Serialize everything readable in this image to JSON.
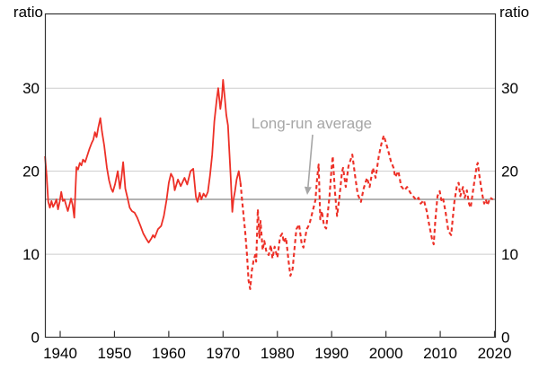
{
  "chart_data": {
    "type": "line",
    "unit_left": "ratio",
    "unit_right": "ratio",
    "x_ticks": [
      1940,
      1950,
      1960,
      1970,
      1980,
      1990,
      2000,
      2010,
      2020
    ],
    "y_ticks": [
      0,
      10,
      20,
      30
    ],
    "x_range": [
      1937.2,
      2020.3
    ],
    "y_range": [
      0,
      39
    ],
    "grid": "horizontal gridlines at 10, 20, 30",
    "legend_position": "none",
    "annotation": {
      "text": "Long-run average",
      "value": 16.6,
      "color": "#a6a6a6"
    },
    "colors": {
      "line": "#ed3027",
      "gridline": "#cdcdcd",
      "average_line": "#9a9a9a",
      "axis": "#333333",
      "text": "#000000"
    },
    "series": [
      {
        "name": "solid-segment",
        "style": "solid",
        "points": [
          [
            1937.2,
            21.8
          ],
          [
            1937.5,
            19.5
          ],
          [
            1937.8,
            16.3
          ],
          [
            1938.1,
            15.6
          ],
          [
            1938.4,
            16.4
          ],
          [
            1938.7,
            15.7
          ],
          [
            1939.0,
            16.1
          ],
          [
            1939.3,
            16.6
          ],
          [
            1939.6,
            15.4
          ],
          [
            1939.9,
            16.3
          ],
          [
            1940.2,
            17.5
          ],
          [
            1940.5,
            16.4
          ],
          [
            1940.8,
            16.6
          ],
          [
            1941.1,
            15.9
          ],
          [
            1941.4,
            15.2
          ],
          [
            1941.8,
            16.2
          ],
          [
            1942.0,
            16.7
          ],
          [
            1942.3,
            15.9
          ],
          [
            1942.6,
            14.4
          ],
          [
            1943.0,
            20.5
          ],
          [
            1943.3,
            20.2
          ],
          [
            1943.6,
            21.0
          ],
          [
            1943.9,
            20.7
          ],
          [
            1944.2,
            21.4
          ],
          [
            1944.6,
            21.1
          ],
          [
            1945.0,
            21.9
          ],
          [
            1945.4,
            22.7
          ],
          [
            1945.8,
            23.4
          ],
          [
            1946.1,
            23.8
          ],
          [
            1946.4,
            24.7
          ],
          [
            1946.7,
            24.1
          ],
          [
            1947.0,
            25.2
          ],
          [
            1947.4,
            26.4
          ],
          [
            1947.7,
            24.8
          ],
          [
            1948.1,
            23.1
          ],
          [
            1948.6,
            20.4
          ],
          [
            1949.0,
            18.9
          ],
          [
            1949.4,
            17.9
          ],
          [
            1949.7,
            17.5
          ],
          [
            1950.1,
            18.4
          ],
          [
            1950.6,
            20.0
          ],
          [
            1951.0,
            17.9
          ],
          [
            1951.3,
            19.3
          ],
          [
            1951.6,
            21.1
          ],
          [
            1952.0,
            17.9
          ],
          [
            1952.4,
            16.8
          ],
          [
            1952.8,
            15.6
          ],
          [
            1953.2,
            15.2
          ],
          [
            1953.7,
            15.0
          ],
          [
            1954.2,
            14.4
          ],
          [
            1954.8,
            13.4
          ],
          [
            1955.3,
            12.5
          ],
          [
            1955.9,
            11.8
          ],
          [
            1956.3,
            11.4
          ],
          [
            1956.8,
            11.9
          ],
          [
            1957.1,
            12.3
          ],
          [
            1957.4,
            12.0
          ],
          [
            1958.0,
            13.0
          ],
          [
            1958.6,
            13.4
          ],
          [
            1959.1,
            14.6
          ],
          [
            1959.6,
            16.6
          ],
          [
            1960.0,
            18.6
          ],
          [
            1960.4,
            19.7
          ],
          [
            1960.8,
            19.2
          ],
          [
            1961.1,
            17.7
          ],
          [
            1961.7,
            19.0
          ],
          [
            1962.2,
            18.2
          ],
          [
            1962.9,
            19.2
          ],
          [
            1963.4,
            18.4
          ],
          [
            1964.0,
            20.0
          ],
          [
            1964.5,
            20.3
          ],
          [
            1965.0,
            16.9
          ],
          [
            1965.3,
            16.3
          ],
          [
            1965.7,
            17.4
          ],
          [
            1966.0,
            16.6
          ],
          [
            1966.4,
            17.3
          ],
          [
            1966.8,
            16.9
          ],
          [
            1967.2,
            17.5
          ],
          [
            1967.6,
            19.5
          ],
          [
            1968.0,
            22.0
          ],
          [
            1968.4,
            26.0
          ],
          [
            1968.8,
            28.5
          ],
          [
            1969.1,
            30.0
          ],
          [
            1969.5,
            27.5
          ],
          [
            1969.8,
            29.0
          ],
          [
            1970.0,
            31.0
          ],
          [
            1970.3,
            29.0
          ],
          [
            1970.6,
            26.8
          ],
          [
            1970.9,
            25.5
          ],
          [
            1971.1,
            23.0
          ],
          [
            1971.4,
            19.3
          ],
          [
            1971.7,
            15.1
          ],
          [
            1971.9,
            16.5
          ],
          [
            1972.2,
            17.6
          ],
          [
            1972.5,
            19.0
          ],
          [
            1972.9,
            20.0
          ],
          [
            1973.2,
            18.6
          ]
        ]
      },
      {
        "name": "dashed-segment",
        "style": "dashed",
        "points": [
          [
            1973.2,
            18.6
          ],
          [
            1973.5,
            16.5
          ],
          [
            1973.8,
            14.5
          ],
          [
            1974.1,
            12.5
          ],
          [
            1974.4,
            10.0
          ],
          [
            1974.7,
            6.8
          ],
          [
            1975.0,
            5.8
          ],
          [
            1975.3,
            8.0
          ],
          [
            1975.6,
            9.2
          ],
          [
            1975.9,
            9.9
          ],
          [
            1976.1,
            9.1
          ],
          [
            1976.4,
            15.4
          ],
          [
            1976.7,
            12.0
          ],
          [
            1976.9,
            14.0
          ],
          [
            1977.3,
            10.5
          ],
          [
            1977.6,
            11.6
          ],
          [
            1978.0,
            10.2
          ],
          [
            1978.4,
            9.9
          ],
          [
            1978.8,
            11.1
          ],
          [
            1979.1,
            9.5
          ],
          [
            1979.5,
            10.9
          ],
          [
            1980.0,
            9.6
          ],
          [
            1980.5,
            12.1
          ],
          [
            1980.9,
            12.5
          ],
          [
            1981.2,
            11.4
          ],
          [
            1981.6,
            12.0
          ],
          [
            1982.1,
            9.0
          ],
          [
            1982.4,
            7.4
          ],
          [
            1982.8,
            8.2
          ],
          [
            1983.1,
            10.3
          ],
          [
            1983.5,
            13.0
          ],
          [
            1984.0,
            13.6
          ],
          [
            1984.5,
            11.2
          ],
          [
            1984.8,
            10.8
          ],
          [
            1985.4,
            13.0
          ],
          [
            1985.9,
            13.6
          ],
          [
            1986.4,
            14.9
          ],
          [
            1987.0,
            16.5
          ],
          [
            1987.3,
            19.0
          ],
          [
            1987.6,
            20.8
          ],
          [
            1987.9,
            14.2
          ],
          [
            1988.2,
            15.2
          ],
          [
            1988.6,
            13.4
          ],
          [
            1989.0,
            13.1
          ],
          [
            1989.6,
            17.0
          ],
          [
            1990.0,
            20.5
          ],
          [
            1990.2,
            21.8
          ],
          [
            1990.6,
            17.6
          ],
          [
            1991.0,
            14.6
          ],
          [
            1991.4,
            16.6
          ],
          [
            1991.9,
            19.9
          ],
          [
            1992.1,
            20.4
          ],
          [
            1992.6,
            18.1
          ],
          [
            1993.1,
            20.6
          ],
          [
            1993.8,
            22.0
          ],
          [
            1994.3,
            19.5
          ],
          [
            1994.8,
            17.2
          ],
          [
            1995.4,
            16.3
          ],
          [
            1995.9,
            17.9
          ],
          [
            1996.5,
            19.2
          ],
          [
            1997.0,
            18.1
          ],
          [
            1997.6,
            20.4
          ],
          [
            1998.1,
            19.2
          ],
          [
            1998.7,
            21.9
          ],
          [
            1999.2,
            23.4
          ],
          [
            1999.6,
            24.3
          ],
          [
            2000.1,
            23.2
          ],
          [
            2000.6,
            22.0
          ],
          [
            2000.9,
            21.2
          ],
          [
            2001.4,
            20.4
          ],
          [
            2001.7,
            19.3
          ],
          [
            2002.3,
            20.0
          ],
          [
            2002.8,
            18.2
          ],
          [
            2003.4,
            17.7
          ],
          [
            2003.9,
            18.1
          ],
          [
            2004.5,
            17.4
          ],
          [
            2005.0,
            17.0
          ],
          [
            2005.6,
            16.5
          ],
          [
            2006.0,
            16.8
          ],
          [
            2006.4,
            16.1
          ],
          [
            2007.0,
            16.5
          ],
          [
            2007.5,
            15.2
          ],
          [
            2008.0,
            13.4
          ],
          [
            2008.5,
            11.8
          ],
          [
            2008.8,
            11.2
          ],
          [
            2009.1,
            14.1
          ],
          [
            2009.5,
            17.0
          ],
          [
            2009.9,
            17.6
          ],
          [
            2010.2,
            16.5
          ],
          [
            2010.5,
            16.8
          ],
          [
            2011.0,
            15.0
          ],
          [
            2011.5,
            12.8
          ],
          [
            2012.0,
            12.3
          ],
          [
            2012.6,
            16.3
          ],
          [
            2013.1,
            18.4
          ],
          [
            2013.4,
            18.6
          ],
          [
            2013.7,
            17.0
          ],
          [
            2014.2,
            18.1
          ],
          [
            2014.5,
            16.8
          ],
          [
            2014.9,
            17.7
          ],
          [
            2015.3,
            16.1
          ],
          [
            2015.6,
            15.6
          ],
          [
            2016.1,
            17.9
          ],
          [
            2016.7,
            20.6
          ],
          [
            2016.9,
            21.0
          ],
          [
            2017.2,
            19.5
          ],
          [
            2017.5,
            18.2
          ],
          [
            2017.8,
            17.0
          ],
          [
            2018.1,
            16.1
          ],
          [
            2018.4,
            16.6
          ],
          [
            2018.7,
            15.9
          ],
          [
            2019.2,
            16.8
          ],
          [
            2019.7,
            16.6
          ]
        ]
      }
    ]
  }
}
